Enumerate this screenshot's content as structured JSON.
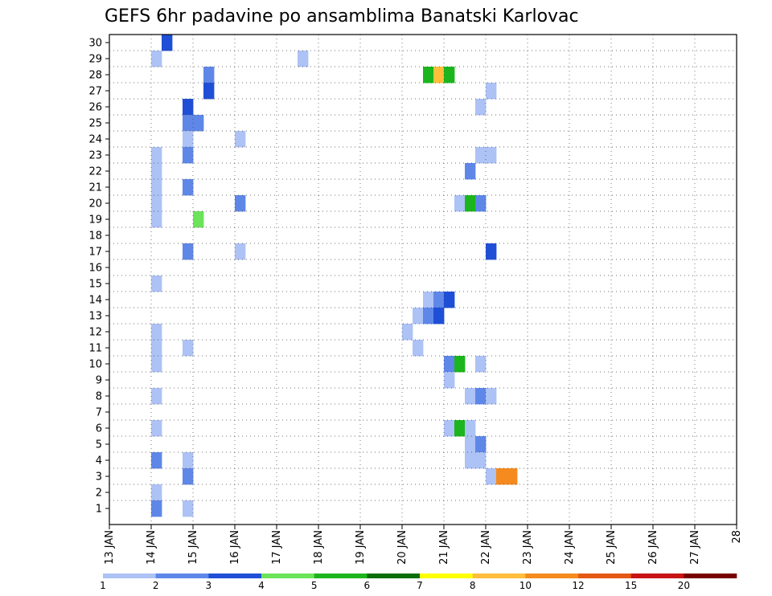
{
  "chart_data": {
    "type": "heatmap",
    "title": "GEFS 6hr padavine po ansamblima Banatski Karlovac",
    "x_tick_labels": [
      "13 JAN",
      "14 JAN",
      "15 JAN",
      "16 JAN",
      "17 JAN",
      "18 JAN",
      "19 JAN",
      "20 JAN",
      "21 JAN",
      "22 JAN",
      "23 JAN",
      "24 JAN",
      "25 JAN",
      "26 JAN",
      "27 JAN",
      "28"
    ],
    "y_tick_labels": [
      "1",
      "2",
      "3",
      "4",
      "5",
      "6",
      "7",
      "8",
      "9",
      "10",
      "11",
      "12",
      "13",
      "14",
      "15",
      "16",
      "17",
      "18",
      "19",
      "20",
      "21",
      "22",
      "23",
      "24",
      "25",
      "26",
      "27",
      "28",
      "29",
      "30"
    ],
    "x_range": [
      "13 JAN 00Z",
      "28 JAN 00Z"
    ],
    "x_step_hours": 6,
    "y_range": [
      0,
      30
    ],
    "grid": true,
    "legend": {
      "position": "bottom",
      "labels": [
        "1",
        "2",
        "3",
        "4",
        "5",
        "6",
        "7",
        "8",
        "10",
        "12",
        "15",
        "20"
      ],
      "colors": [
        "#adc2f5",
        "#5e87e8",
        "#1f4fd6",
        "#6be45a",
        "#1db51d",
        "#0b6e0b",
        "#ffff00",
        "#ffbe3c",
        "#f58a1e",
        "#e45a14",
        "#c81414",
        "#780000"
      ]
    },
    "points": [
      [
        5,
        3,
        30
      ],
      [
        4,
        1,
        29
      ],
      [
        18,
        1,
        29
      ],
      [
        9,
        2,
        28
      ],
      [
        9,
        3,
        27
      ],
      [
        7,
        3,
        26
      ],
      [
        7,
        2,
        25
      ],
      [
        8,
        2,
        25
      ],
      [
        7,
        1,
        24
      ],
      [
        12,
        1,
        24
      ],
      [
        4,
        1,
        23
      ],
      [
        7,
        2,
        23
      ],
      [
        4,
        1,
        22
      ],
      [
        4,
        1,
        21
      ],
      [
        7,
        2,
        21
      ],
      [
        4,
        1,
        20
      ],
      [
        12,
        2,
        20
      ],
      [
        4,
        1,
        19
      ],
      [
        8,
        4,
        19
      ],
      [
        7,
        2,
        17
      ],
      [
        12,
        1,
        17
      ],
      [
        4,
        1,
        15
      ],
      [
        4,
        1,
        12
      ],
      [
        4,
        1,
        11
      ],
      [
        7,
        1,
        11
      ],
      [
        4,
        1,
        10
      ],
      [
        4,
        1,
        8
      ],
      [
        4,
        1,
        6
      ],
      [
        4,
        2,
        4
      ],
      [
        7,
        1,
        4
      ],
      [
        7,
        2,
        3
      ],
      [
        4,
        1,
        2
      ],
      [
        7,
        1,
        1
      ],
      [
        4,
        2,
        1
      ],
      [
        30,
        5,
        28
      ],
      [
        31,
        8,
        28
      ],
      [
        32,
        5,
        28
      ],
      [
        36,
        1,
        27
      ],
      [
        35,
        1,
        26
      ],
      [
        35,
        1,
        23
      ],
      [
        36,
        1,
        23
      ],
      [
        34,
        2,
        22
      ],
      [
        33,
        1,
        20
      ],
      [
        34,
        5,
        20
      ],
      [
        35,
        2,
        20
      ],
      [
        36,
        3,
        17
      ],
      [
        30,
        1,
        14
      ],
      [
        31,
        2,
        14
      ],
      [
        32,
        3,
        14
      ],
      [
        29,
        1,
        13
      ],
      [
        30,
        2,
        13
      ],
      [
        31,
        3,
        13
      ],
      [
        29,
        1,
        11
      ],
      [
        32,
        2,
        10
      ],
      [
        33,
        5,
        10
      ],
      [
        35,
        1,
        10
      ],
      [
        32,
        1,
        9
      ],
      [
        34,
        1,
        8
      ],
      [
        35,
        2,
        8
      ],
      [
        36,
        1,
        8
      ],
      [
        32,
        1,
        6
      ],
      [
        33,
        5,
        6
      ],
      [
        34,
        1,
        6
      ],
      [
        34,
        1,
        5
      ],
      [
        35,
        2,
        5
      ],
      [
        34,
        1,
        4
      ],
      [
        35,
        1,
        4
      ],
      [
        36,
        1,
        3
      ],
      [
        37,
        10,
        3
      ],
      [
        38,
        10,
        3
      ],
      [
        28,
        1,
        12
      ]
    ]
  }
}
